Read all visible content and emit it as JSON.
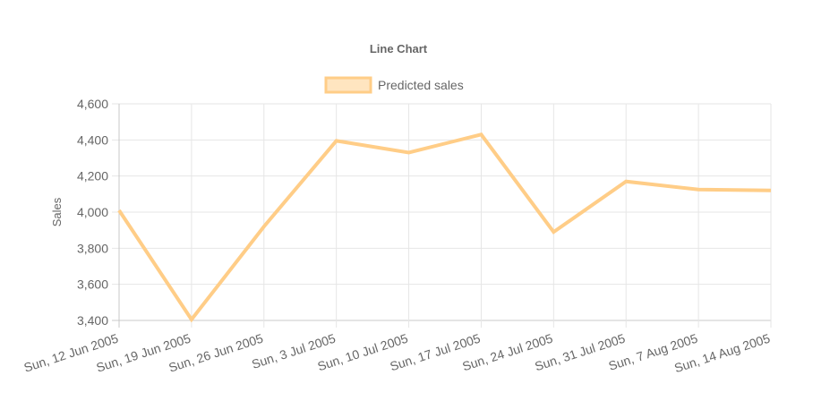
{
  "chart_data": {
    "type": "line",
    "title": "Line Chart",
    "xlabel": "",
    "ylabel": "Sales",
    "ylim": [
      3400,
      4600
    ],
    "y_ticks": [
      "4,600",
      "4,400",
      "4,200",
      "4,000",
      "3,800",
      "3,600",
      "3,400"
    ],
    "y_tick_values": [
      4600,
      4400,
      4200,
      4000,
      3800,
      3600,
      3400
    ],
    "categories": [
      "Sun, 12 Jun 2005",
      "Sun, 19 Jun 2005",
      "Sun, 26 Jun 2005",
      "Sun, 3 Jul 2005",
      "Sun, 10 Jul 2005",
      "Sun, 17 Jul 2005",
      "Sun, 24 Jul 2005",
      "Sun, 31 Jul 2005",
      "Sun, 7 Aug 2005",
      "Sun, 14 Aug 2005"
    ],
    "legend_position": "top",
    "grid": true,
    "series": [
      {
        "name": "Predicted sales",
        "color": "#ffcd87",
        "fill_color": "#ffe5c0",
        "values": [
          4010,
          3405,
          3920,
          4395,
          4330,
          4430,
          3890,
          4170,
          4125,
          4120
        ]
      }
    ]
  }
}
